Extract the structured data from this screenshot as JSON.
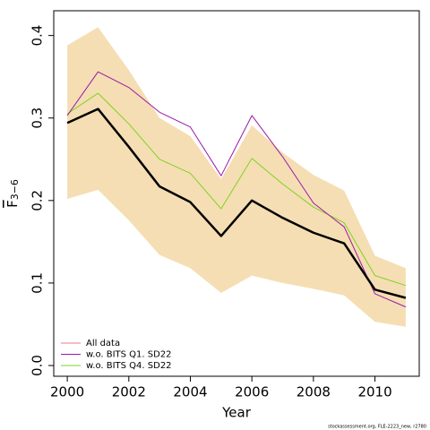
{
  "chart_data": {
    "type": "line",
    "xlabel": "Year",
    "ylabel": {
      "main": "F",
      "sub": "3−6"
    },
    "x": [
      2000,
      2001,
      2002,
      2003,
      2004,
      2005,
      2006,
      2007,
      2008,
      2009,
      2010,
      2011
    ],
    "band": {
      "color": "#f5deb3",
      "upper": [
        0.388,
        0.41,
        0.358,
        0.3,
        0.278,
        0.226,
        0.291,
        0.258,
        0.231,
        0.212,
        0.133,
        0.118
      ],
      "lower": [
        0.202,
        0.213,
        0.176,
        0.134,
        0.118,
        0.088,
        0.109,
        0.1,
        0.093,
        0.085,
        0.053,
        0.047
      ]
    },
    "series": [
      {
        "name": "All data",
        "color": "#000000",
        "legend_color": "#e8788c",
        "width": 2.5,
        "values": [
          0.294,
          0.311,
          0.265,
          0.217,
          0.198,
          0.157,
          0.2,
          0.179,
          0.161,
          0.148,
          0.092,
          0.082
        ]
      },
      {
        "name": "w.o. BITS Q1. SD22",
        "color": "#9a1aa8",
        "legend_color": "#9a1aa8",
        "width": 1,
        "values": [
          0.303,
          0.356,
          0.337,
          0.307,
          0.289,
          0.23,
          0.303,
          0.253,
          0.197,
          0.168,
          0.087,
          0.071
        ]
      },
      {
        "name": "w.o. BITS Q4. SD22",
        "color": "#7ed321",
        "legend_color": "#7ed321",
        "width": 1,
        "values": [
          0.305,
          0.33,
          0.293,
          0.25,
          0.233,
          0.19,
          0.251,
          0.22,
          0.192,
          0.173,
          0.109,
          0.097
        ]
      }
    ],
    "xlim": [
      1999.56,
      2011.44
    ],
    "xticks": [
      2000,
      2002,
      2004,
      2006,
      2008,
      2010
    ],
    "ylim": [
      -0.013,
      0.43
    ],
    "yticks": [
      {
        "value": 0,
        "label": "0.0"
      },
      0.1,
      0.2,
      0.3,
      0.4
    ],
    "legend": "bottom-left",
    "footer": "stockassessment.org, FLE-2223_new, r2780"
  }
}
